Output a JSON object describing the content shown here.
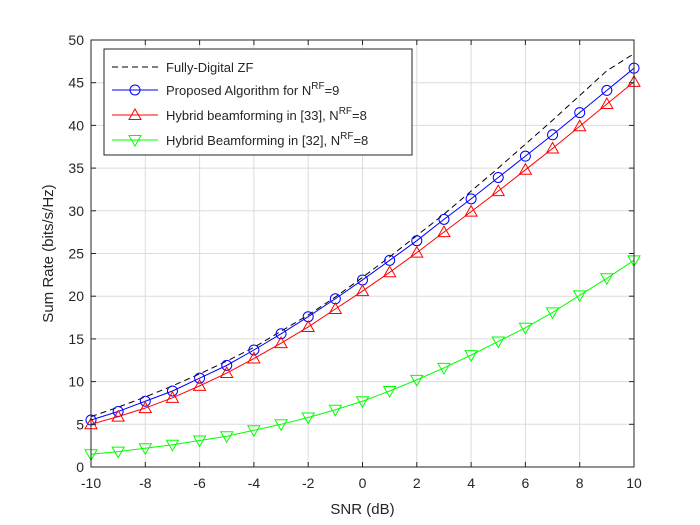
{
  "chart_data": {
    "type": "line",
    "xlabel": "SNR (dB)",
    "ylabel": "Sum Rate (bits/s/Hz)",
    "xlim": [
      -10,
      10
    ],
    "ylim": [
      0,
      50
    ],
    "xticks": [
      -10,
      -8,
      -6,
      -4,
      -2,
      0,
      2,
      4,
      6,
      8,
      10
    ],
    "yticks": [
      0,
      5,
      10,
      15,
      20,
      25,
      30,
      35,
      40,
      45,
      50
    ],
    "grid": true,
    "legend_position": "top-left",
    "x": [
      -10,
      -9,
      -8,
      -7,
      -6,
      -5,
      -4,
      -3,
      -2,
      -1,
      0,
      1,
      2,
      3,
      4,
      5,
      6,
      7,
      8,
      9,
      10
    ],
    "series": [
      {
        "name": "Fully-Digital ZF",
        "color": "#000000",
        "line_style": "dashed",
        "marker": "none",
        "values": [
          5.9,
          7.0,
          8.2,
          9.5,
          10.9,
          12.4,
          14.0,
          15.9,
          17.8,
          19.9,
          22.2,
          24.6,
          27.1,
          29.6,
          32.3,
          35.0,
          37.8,
          40.6,
          43.5,
          46.4,
          48.4
        ]
      },
      {
        "name": "Proposed Algorithm for N^RF=9",
        "color": "#0000ff",
        "line_style": "solid",
        "marker": "circle",
        "values": [
          5.5,
          6.5,
          7.7,
          8.9,
          10.4,
          11.9,
          13.7,
          15.6,
          17.6,
          19.7,
          21.9,
          24.2,
          26.5,
          29.0,
          31.4,
          33.9,
          36.4,
          38.9,
          41.5,
          44.1,
          46.7
        ]
      },
      {
        "name": "Hybrid beamforming in [33], N^RF=8",
        "color": "#ff0000",
        "line_style": "solid",
        "marker": "triangle-up",
        "values": [
          5.0,
          5.9,
          6.9,
          8.1,
          9.5,
          11.0,
          12.7,
          14.5,
          16.4,
          18.5,
          20.6,
          22.8,
          25.1,
          27.5,
          29.9,
          32.3,
          34.8,
          37.3,
          39.9,
          42.5,
          45.1
        ]
      },
      {
        "name": "Hybrid Beamforming in [32], N^RF=8",
        "color": "#00ff00",
        "line_style": "solid",
        "marker": "triangle-down",
        "values": [
          1.5,
          1.8,
          2.2,
          2.6,
          3.1,
          3.6,
          4.3,
          5.0,
          5.8,
          6.7,
          7.7,
          8.9,
          10.2,
          11.6,
          13.1,
          14.7,
          16.3,
          18.1,
          20.1,
          22.1,
          24.2
        ]
      }
    ],
    "legend": [
      {
        "base": "Fully-Digital ZF",
        "sup": "",
        "tail": ""
      },
      {
        "base": "Proposed Algorithm for N",
        "sup": "RF",
        "tail": "=9"
      },
      {
        "base": "Hybrid beamforming in [33], N",
        "sup": "RF",
        "tail": "=8"
      },
      {
        "base": "Hybrid Beamforming in [32], N",
        "sup": "RF",
        "tail": "=8"
      }
    ]
  }
}
